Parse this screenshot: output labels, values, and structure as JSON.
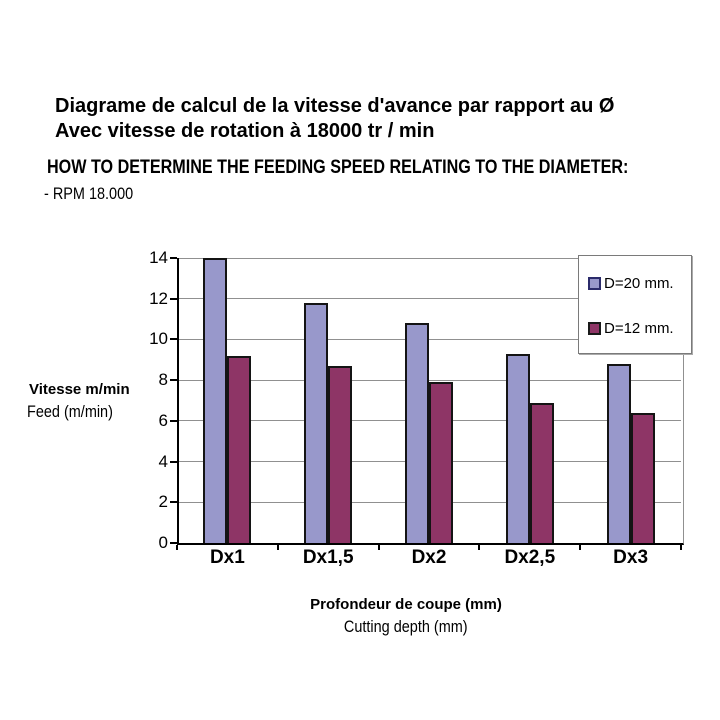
{
  "header": {
    "title_fr_line1": "Diagrame de calcul de la vitesse d'avance par rapport au Ø",
    "title_fr_line2": "Avec vitesse de rotation à 18000 tr / min",
    "title_en": "HOW TO DETERMINE THE FEEDING SPEED RELATING TO THE DIAMETER:",
    "rpm_note": "- RPM 18.000"
  },
  "chart_data": {
    "type": "bar",
    "categories": [
      "Dx1",
      "Dx1,5",
      "Dx2",
      "Dx2,5",
      "Dx3"
    ],
    "series": [
      {
        "name": "D=20 mm.",
        "color": "#9898CB",
        "marker_border": "#2b2b6b",
        "values": [
          14,
          11.8,
          10.8,
          9.3,
          8.8
        ]
      },
      {
        "name": "D=12 mm.",
        "color": "#8E3566",
        "marker_border": "#1a1a1a",
        "values": [
          9.2,
          8.7,
          7.9,
          6.9,
          6.4
        ]
      }
    ],
    "ylim": [
      0,
      14
    ],
    "yticks": [
      0,
      2,
      4,
      6,
      8,
      10,
      12,
      14
    ],
    "ylabel_fr": "Vitesse m/min",
    "ylabel_en": "Feed (m/min)",
    "xlabel_fr": "Profondeur de coupe (mm)",
    "xlabel_en": "Cutting depth (mm)",
    "grid": true,
    "gridline_color": "#909090",
    "legend_position": "top-right",
    "background": "#ffffff"
  }
}
